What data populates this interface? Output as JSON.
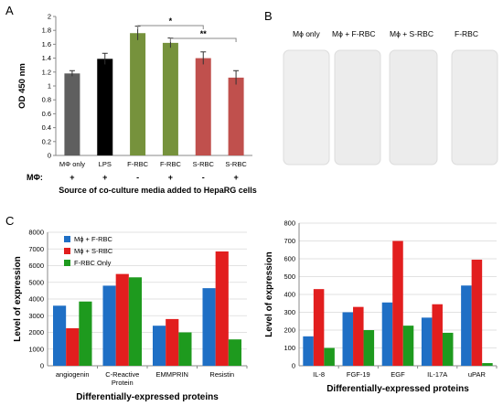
{
  "panels": {
    "A": "A",
    "B": "B",
    "C": "C"
  },
  "panel_b": {
    "labels": [
      "Mϕ only",
      "Mϕ + F-RBC",
      "Mϕ + S-RBC",
      "F-RBC"
    ]
  },
  "colors": {
    "gray": "#5f5f5f",
    "black": "#000000",
    "green": "#76923c",
    "red": "#c0504d",
    "blue": "#1f6fc5",
    "bright_red": "#e21e1e",
    "bright_green": "#1e9a1e"
  },
  "chart_data": [
    {
      "id": "A",
      "type": "bar",
      "ylabel": "OD 450 nm",
      "xlabel": "Source of co-culture media added to HepaRG cells",
      "row_label": "MΦ:",
      "ylim": [
        0,
        2
      ],
      "yticks": [
        "0",
        "0.2",
        "0.4",
        "0.6",
        "0.8",
        "1",
        "1.2",
        "1.4",
        "1.6",
        "1.8",
        "2"
      ],
      "categories": [
        "MΦ only",
        "LPS",
        "F-RBC",
        "F-RBC",
        "S-RBC",
        "S-RBC"
      ],
      "macrophage": [
        "+",
        "+",
        "-",
        "+",
        "-",
        "+"
      ],
      "values": [
        1.18,
        1.39,
        1.76,
        1.62,
        1.4,
        1.12
      ],
      "errors": [
        0.04,
        0.08,
        0.1,
        0.07,
        0.09,
        0.1
      ],
      "bar_colors": [
        "#5f5f5f",
        "#000000",
        "#76923c",
        "#76923c",
        "#c0504d",
        "#c0504d"
      ],
      "significance": [
        {
          "from": 2,
          "to": 4,
          "label": "*"
        },
        {
          "from": 3,
          "to": 5,
          "label": "**"
        }
      ]
    },
    {
      "id": "C-left",
      "type": "bar",
      "ylabel": "Level of expression",
      "xlabel": "Differentially-expressed proteins",
      "ylim": [
        0,
        8000
      ],
      "yticks": [
        "0",
        "1000",
        "2000",
        "3000",
        "4000",
        "5000",
        "6000",
        "7000",
        "8000"
      ],
      "categories": [
        "angiogenin",
        "C-Reactive Protein",
        "EMMPRIN",
        "Resistin"
      ],
      "legend_position": "top-left",
      "series": [
        {
          "name": "Mϕ + F-RBC",
          "color": "#1f6fc5",
          "values": [
            3600,
            4800,
            2400,
            4650
          ]
        },
        {
          "name": "Mϕ + S-RBC",
          "color": "#e21e1e",
          "values": [
            2250,
            5500,
            2800,
            6850
          ]
        },
        {
          "name": "F-RBC Only",
          "color": "#1e9a1e",
          "values": [
            3850,
            5300,
            2000,
            1580
          ]
        }
      ]
    },
    {
      "id": "C-right",
      "type": "bar",
      "ylabel": "Level of expression",
      "xlabel": "Differentially-expressed proteins",
      "ylim": [
        0,
        800
      ],
      "yticks": [
        "0",
        "100",
        "200",
        "300",
        "400",
        "500",
        "600",
        "700",
        "800"
      ],
      "categories": [
        "IL-8",
        "FGF-19",
        "EGF",
        "IL-17A",
        "uPAR"
      ],
      "series": [
        {
          "name": "",
          "color": "#1f6fc5",
          "values": [
            165,
            300,
            355,
            270,
            450
          ]
        },
        {
          "name": "",
          "color": "#e21e1e",
          "values": [
            430,
            330,
            700,
            345,
            595
          ]
        },
        {
          "name": "",
          "color": "#1e9a1e",
          "values": [
            100,
            200,
            225,
            185,
            15
          ]
        }
      ]
    }
  ]
}
